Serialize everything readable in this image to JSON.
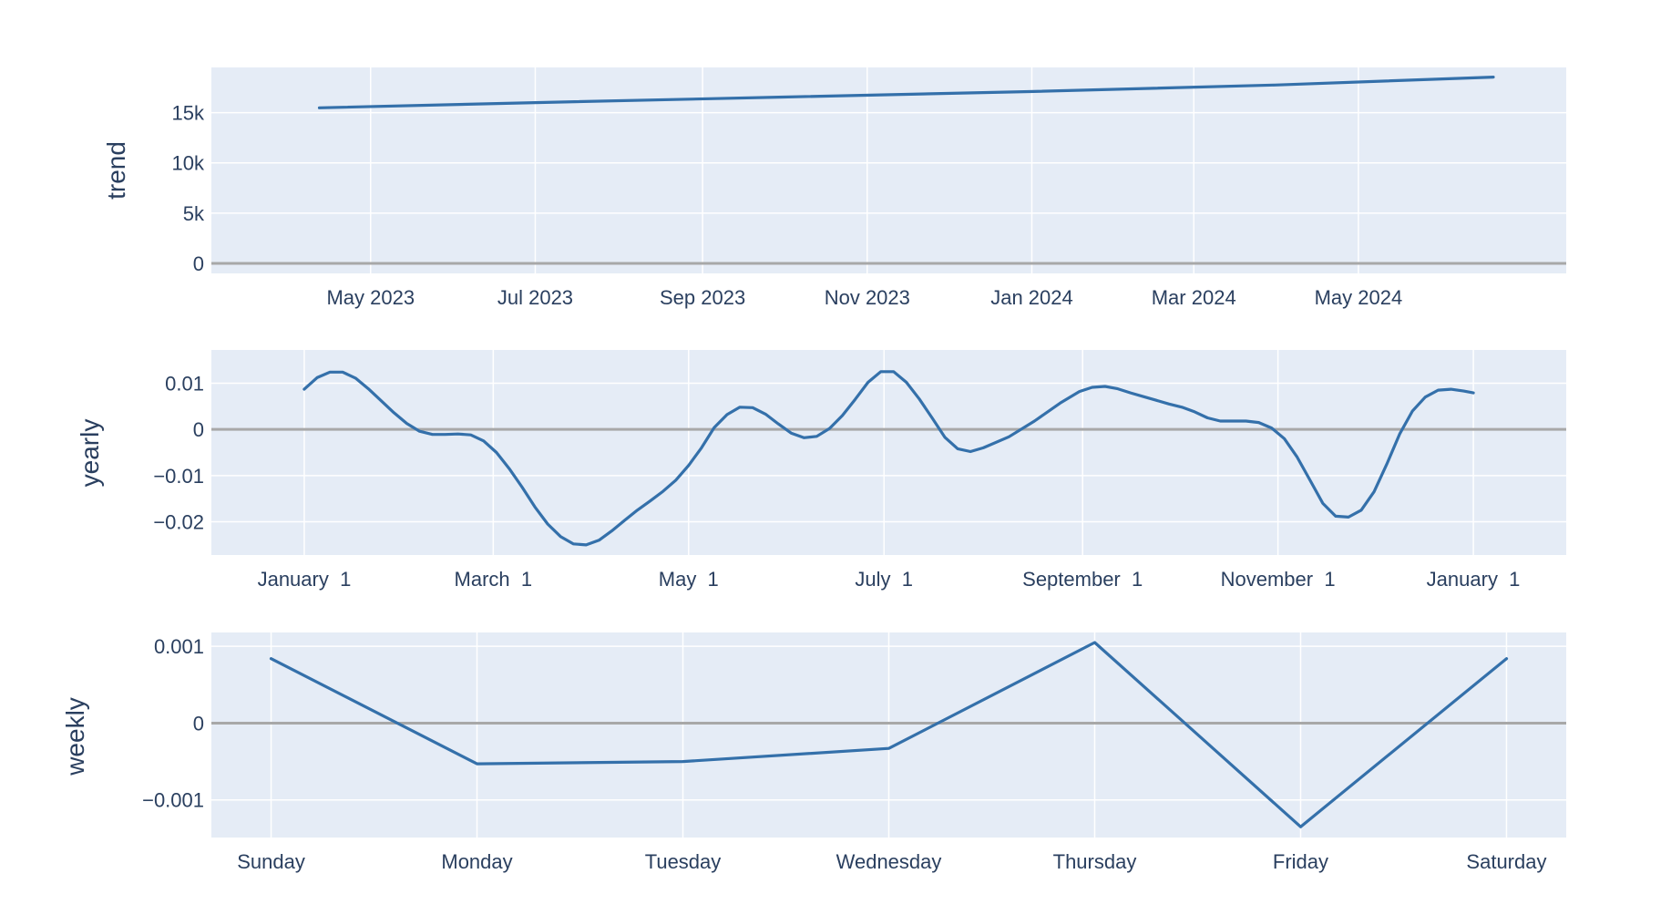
{
  "chart_data": [
    {
      "type": "line",
      "ylabel": "trend",
      "x_kind": "date",
      "ylim": [
        -1000,
        19500
      ],
      "yticks": [
        {
          "v": 0,
          "label": "0"
        },
        {
          "v": 5000,
          "label": "5k"
        },
        {
          "v": 10000,
          "label": "10k"
        },
        {
          "v": 15000,
          "label": "15k"
        }
      ],
      "xlim": [
        "2023-03-03",
        "2024-07-17"
      ],
      "xticks": [
        {
          "v": "2023-05-01",
          "label": "May 2023"
        },
        {
          "v": "2023-07-01",
          "label": "Jul 2023"
        },
        {
          "v": "2023-09-01",
          "label": "Sep 2023"
        },
        {
          "v": "2023-11-01",
          "label": "Nov 2023"
        },
        {
          "v": "2024-01-01",
          "label": "Jan 2024"
        },
        {
          "v": "2024-03-01",
          "label": "Mar 2024"
        },
        {
          "v": "2024-05-01",
          "label": "May 2024"
        }
      ],
      "series": [
        {
          "x": [
            "2023-04-12",
            "2023-07-01",
            "2023-10-01",
            "2023-12-31",
            "2024-03-31",
            "2024-06-20"
          ],
          "y": [
            15480,
            16000,
            16550,
            17100,
            17750,
            18540
          ]
        }
      ]
    },
    {
      "type": "line",
      "ylabel": "yearly",
      "x_kind": "date",
      "ylim": [
        -0.0272,
        0.0172
      ],
      "yticks": [
        {
          "v": -0.02,
          "label": "−0.02"
        },
        {
          "v": -0.01,
          "label": "−0.01"
        },
        {
          "v": 0,
          "label": "0"
        },
        {
          "v": 0.01,
          "label": "0.01"
        }
      ],
      "xlim": [
        "2016-12-03",
        "2018-01-30"
      ],
      "xticks": [
        {
          "v": "2017-01-01",
          "label": "January  1"
        },
        {
          "v": "2017-03-01",
          "label": "March  1"
        },
        {
          "v": "2017-05-01",
          "label": "May  1"
        },
        {
          "v": "2017-07-01",
          "label": "July  1"
        },
        {
          "v": "2017-09-01",
          "label": "September  1"
        },
        {
          "v": "2017-11-01",
          "label": "November  1"
        },
        {
          "v": "2018-01-01",
          "label": "January  1"
        }
      ],
      "series": [
        {
          "x": [
            "2017-01-01",
            "2017-01-05",
            "2017-01-09",
            "2017-01-13",
            "2017-01-17",
            "2017-01-21",
            "2017-01-25",
            "2017-01-29",
            "2017-02-02",
            "2017-02-06",
            "2017-02-10",
            "2017-02-14",
            "2017-02-18",
            "2017-02-22",
            "2017-02-26",
            "2017-03-02",
            "2017-03-06",
            "2017-03-10",
            "2017-03-14",
            "2017-03-18",
            "2017-03-22",
            "2017-03-26",
            "2017-03-30",
            "2017-04-03",
            "2017-04-07",
            "2017-04-11",
            "2017-04-15",
            "2017-04-19",
            "2017-04-23",
            "2017-04-27",
            "2017-05-01",
            "2017-05-05",
            "2017-05-09",
            "2017-05-13",
            "2017-05-17",
            "2017-05-21",
            "2017-05-25",
            "2017-05-29",
            "2017-06-02",
            "2017-06-06",
            "2017-06-10",
            "2017-06-14",
            "2017-06-18",
            "2017-06-22",
            "2017-06-26",
            "2017-06-30",
            "2017-07-04",
            "2017-07-08",
            "2017-07-12",
            "2017-07-16",
            "2017-07-20",
            "2017-07-24",
            "2017-07-28",
            "2017-08-01",
            "2017-08-09",
            "2017-08-17",
            "2017-08-25",
            "2017-08-31",
            "2017-09-04",
            "2017-09-08",
            "2017-09-12",
            "2017-09-16",
            "2017-09-20",
            "2017-09-24",
            "2017-09-28",
            "2017-10-02",
            "2017-10-06",
            "2017-10-10",
            "2017-10-14",
            "2017-10-18",
            "2017-10-22",
            "2017-10-26",
            "2017-10-30",
            "2017-11-03",
            "2017-11-07",
            "2017-11-11",
            "2017-11-15",
            "2017-11-19",
            "2017-11-23",
            "2017-11-27",
            "2017-12-01",
            "2017-12-05",
            "2017-12-09",
            "2017-12-13",
            "2017-12-17",
            "2017-12-21",
            "2017-12-25",
            "2017-12-29",
            "2018-01-01"
          ],
          "y": [
            0.0087,
            0.0112,
            0.0124,
            0.0124,
            0.0111,
            0.0088,
            0.0062,
            0.0036,
            0.0013,
            -0.0004,
            -0.0011,
            -0.0011,
            -0.001,
            -0.0012,
            -0.0025,
            -0.005,
            -0.0085,
            -0.0125,
            -0.0168,
            -0.0205,
            -0.0232,
            -0.0248,
            -0.025,
            -0.024,
            -0.022,
            -0.0197,
            -0.0175,
            -0.0155,
            -0.0134,
            -0.011,
            -0.0078,
            -0.004,
            0.0004,
            0.0032,
            0.0048,
            0.0047,
            0.0033,
            0.0012,
            -0.0008,
            -0.0018,
            -0.0015,
            0.0002,
            0.003,
            0.0065,
            0.0102,
            0.0125,
            0.0125,
            0.0102,
            0.0066,
            0.0025,
            -0.0017,
            -0.0042,
            -0.0048,
            -0.004,
            -0.0016,
            0.0018,
            0.0057,
            0.0082,
            0.0091,
            0.0093,
            0.0088,
            0.0079,
            0.0071,
            0.0063,
            0.0055,
            0.0048,
            0.0038,
            0.0025,
            0.0018,
            0.0018,
            0.0018,
            0.0015,
            0.0003,
            -0.002,
            -0.006,
            -0.011,
            -0.016,
            -0.0188,
            -0.019,
            -0.0175,
            -0.0135,
            -0.0075,
            -0.001,
            0.004,
            0.007,
            0.0085,
            0.0087,
            0.0083,
            0.0079
          ]
        }
      ]
    },
    {
      "type": "line",
      "ylabel": "weekly",
      "x_kind": "category",
      "ylim": [
        -0.00149,
        0.00118
      ],
      "yticks": [
        {
          "v": -0.001,
          "label": "−0.001"
        },
        {
          "v": 0,
          "label": "0"
        },
        {
          "v": 0.001,
          "label": "0.001"
        }
      ],
      "categories": [
        "Sunday",
        "Monday",
        "Tuesday",
        "Wednesday",
        "Thursday",
        "Friday",
        "Saturday"
      ],
      "series": [
        {
          "values": [
            0.00084,
            -0.00053,
            -0.0005,
            -0.00033,
            0.00105,
            -0.00135,
            0.00084
          ]
        }
      ]
    }
  ]
}
